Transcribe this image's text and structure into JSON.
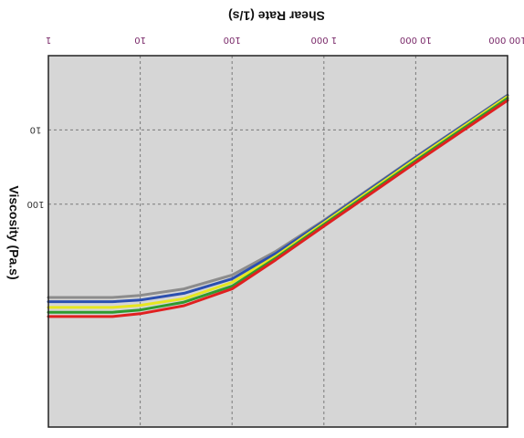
{
  "chart_data": {
    "type": "line",
    "orientation": "rotated-180",
    "xlabel": "Shear Rate (1/s)",
    "ylabel": "Viscosity (Pa.s)",
    "x_scale": "log",
    "y_scale": "log",
    "xlim": [
      1,
      100000
    ],
    "ylim": [
      1,
      100000
    ],
    "x_ticks": [
      {
        "value": 1,
        "label": "1"
      },
      {
        "value": 10,
        "label": "10"
      },
      {
        "value": 100,
        "label": "100"
      },
      {
        "value": 1000,
        "label": "1 000"
      },
      {
        "value": 10000,
        "label": "10 000"
      },
      {
        "value": 100000,
        "label": "100 000"
      }
    ],
    "y_ticks": [
      {
        "value": 10,
        "label": "10"
      },
      {
        "value": 100,
        "label": "100"
      }
    ],
    "grid": true,
    "background": "#d6d6d6",
    "series": [
      {
        "color": "#8c8c8c",
        "points": [
          [
            1,
            1800
          ],
          [
            5,
            1800
          ],
          [
            10,
            1690
          ],
          [
            30,
            1380
          ],
          [
            100,
            900
          ],
          [
            300,
            430
          ],
          [
            1000,
            165
          ],
          [
            10000,
            23
          ],
          [
            100000,
            3.4
          ]
        ]
      },
      {
        "color": "#2b4fb0",
        "points": [
          [
            1,
            2050
          ],
          [
            5,
            2050
          ],
          [
            10,
            1950
          ],
          [
            30,
            1580
          ],
          [
            100,
            1010
          ],
          [
            300,
            460
          ],
          [
            1000,
            170
          ],
          [
            10000,
            23.5
          ],
          [
            100000,
            3.45
          ]
        ]
      },
      {
        "color": "#e6e620",
        "points": [
          [
            1,
            2450
          ],
          [
            5,
            2450
          ],
          [
            10,
            2300
          ],
          [
            30,
            1870
          ],
          [
            100,
            1130
          ],
          [
            300,
            500
          ],
          [
            1000,
            178
          ],
          [
            10000,
            24.5
          ],
          [
            100000,
            3.55
          ]
        ]
      },
      {
        "color": "#2f9a2f",
        "points": [
          [
            1,
            2850
          ],
          [
            5,
            2850
          ],
          [
            10,
            2650
          ],
          [
            30,
            2080
          ],
          [
            100,
            1270
          ],
          [
            300,
            530
          ],
          [
            1000,
            188
          ],
          [
            10000,
            26
          ],
          [
            100000,
            3.75
          ]
        ]
      },
      {
        "color": "#e02020",
        "points": [
          [
            1,
            3250
          ],
          [
            5,
            3250
          ],
          [
            10,
            2980
          ],
          [
            30,
            2320
          ],
          [
            100,
            1380
          ],
          [
            300,
            560
          ],
          [
            1000,
            198
          ],
          [
            10000,
            27.5
          ],
          [
            100000,
            4.0
          ]
        ]
      }
    ]
  }
}
